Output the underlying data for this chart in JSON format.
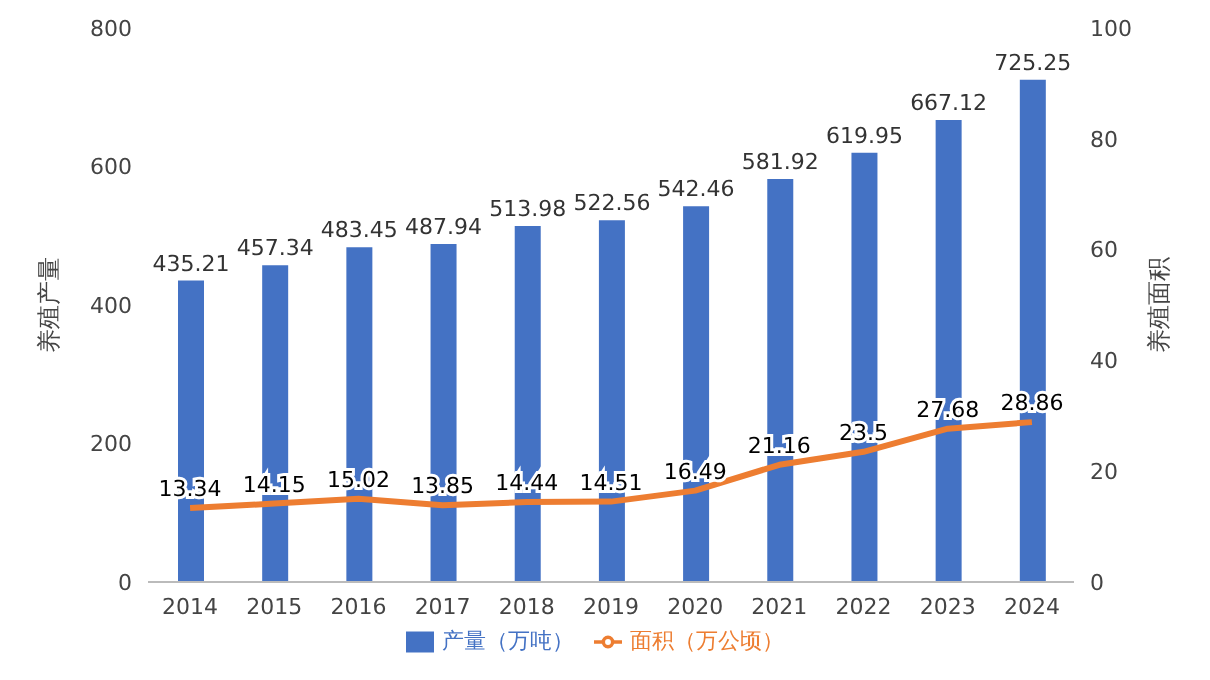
{
  "chart_data": {
    "type": "bar",
    "ylabel": "养殖产量",
    "y2label": "养殖面积",
    "categories": [
      "2014",
      "2015",
      "2016",
      "2017",
      "2018",
      "2019",
      "2020",
      "2021",
      "2022",
      "2023",
      "2024"
    ],
    "series": [
      {
        "name": "产量（万吨）",
        "color": "#4472c4",
        "values": [
          435.21,
          457.34,
          483.45,
          487.94,
          513.98,
          522.56,
          542.46,
          581.92,
          619.95,
          667.12,
          725.25
        ]
      },
      {
        "name": "面积（万公顷）",
        "type": "line",
        "axis": "y2",
        "color": "#ed7d31",
        "values": [
          13.34,
          14.15,
          15.02,
          13.85,
          14.44,
          14.51,
          16.49,
          21.16,
          23.5,
          27.68,
          28.86
        ]
      }
    ],
    "ylim": [
      0,
      800
    ],
    "yticks": [
      0,
      200,
      400,
      600,
      800
    ],
    "y2lim": [
      0,
      100
    ],
    "y2ticks": [
      0,
      20,
      40,
      60,
      80,
      100
    ],
    "legend": "bottom",
    "data_labels": true,
    "marker": "none"
  }
}
